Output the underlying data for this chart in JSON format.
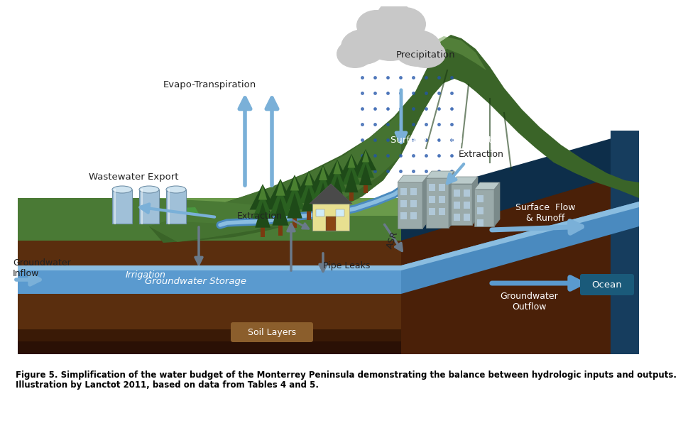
{
  "caption_line1": "Figure 5. Simplification of the water budget of the Monterrey Peninsula demonstrating the balance between hydrologic inputs and outputs.",
  "caption_line2": "Illustration by Lanctot 2011, based on data from Tables 4 and 5.",
  "caption_fontsize": 8.5,
  "labels": {
    "precipitation": "Precipitation",
    "evapo": "Evapo-Transpiration",
    "wastewater": "Wastewater Export",
    "gw_inflow": "Groundwater\nInflow",
    "irrigation": "Irrigation",
    "extraction_left": "Extraction",
    "pipe_leaks": "Pipe Leaks",
    "gw_storage": "Groundwater Storage",
    "soil_layers": "Soil Layers",
    "surface_gw_storage": "Surface & Groundwater\nStorage",
    "extraction_right": "Extraction",
    "asr": "ASR",
    "surface_flow": "Surface  Flow\n& Runoff",
    "gw_outflow": "Groundwater\nOutflow",
    "ocean": "Ocean"
  },
  "colors": {
    "hill_dark": "#3a6428",
    "hill_mid": "#4a7a35",
    "hill_light": "#6a9a4a",
    "hill_shadow": "#2a4a1e",
    "soil_brown": "#5a2e0e",
    "soil_dark_brown": "#3a1a06",
    "soil_bottom": "#2a1005",
    "water_blue": "#4a8abf",
    "water_mid": "#5a9acf",
    "water_light": "#8abde0",
    "ocean_dark": "#0d2e4a",
    "ocean_mid": "#163d5e",
    "ocean_light": "#1e4d70",
    "arrow_blue": "#7ab0d8",
    "arrow_blue_dark": "#4a80b8",
    "arrow_gray": "#6a7a8a",
    "text_dark": "#1a1a1a",
    "text_white": "#ffffff",
    "text_black": "#000000",
    "cloud_gray": "#a8a8a8",
    "cloud_light": "#c8c8c8",
    "cloud_dark": "#888888",
    "tree_trunk": "#7a3a10",
    "tree_dark": "#1e4a18",
    "tree_mid": "#2a6020",
    "tree_light": "#4a8030",
    "building_dark": "#7a8a8a",
    "building_mid": "#9aaaaa",
    "building_light": "#bacaca",
    "house_yellow": "#e8e090",
    "house_roof": "#4a4a4a",
    "house_wall": "#d0c880",
    "tank_blue": "#a0c0d8",
    "tank_dark": "#7090a8",
    "soil_label_bg": "#8b5e2c",
    "ocean_label_bg": "#1a5a7a",
    "grass_green": "#3a7030",
    "golf_green": "#4a9840"
  }
}
